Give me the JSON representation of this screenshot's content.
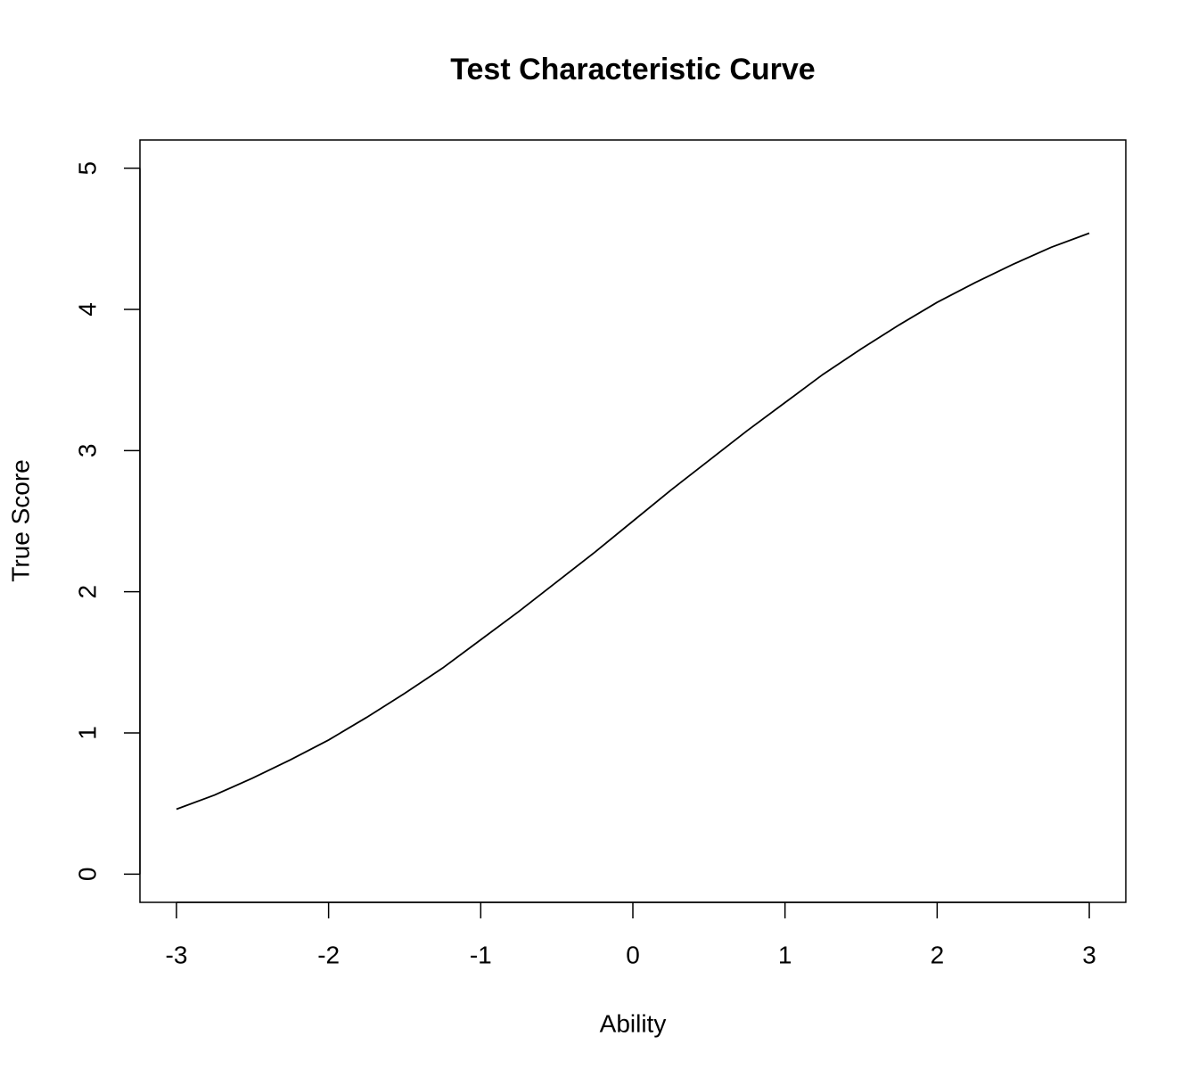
{
  "chart_data": {
    "type": "line",
    "title": "Test Characteristic Curve",
    "x_label": "Ability",
    "y_label": "True Score",
    "x": [
      -3,
      -2.75,
      -2.5,
      -2.25,
      -2,
      -1.75,
      -1.5,
      -1.25,
      -1,
      -0.75,
      -0.5,
      -0.25,
      0,
      0.25,
      0.5,
      0.75,
      1,
      1.25,
      1.5,
      1.75,
      2,
      2.25,
      2.5,
      2.75,
      3
    ],
    "values": [
      0.46,
      0.56,
      0.68,
      0.81,
      0.95,
      1.11,
      1.28,
      1.46,
      1.66,
      1.86,
      2.07,
      2.28,
      2.5,
      2.72,
      2.93,
      3.14,
      3.34,
      3.54,
      3.72,
      3.89,
      4.05,
      4.19,
      4.32,
      4.44,
      4.54
    ],
    "color": "#000000",
    "xlim": [
      -3.24,
      3.24
    ],
    "ylim": [
      -0.2,
      5.2
    ],
    "xticks": [
      -3,
      -2,
      -1,
      0,
      1,
      2,
      3
    ],
    "yticks": [
      0,
      1,
      2,
      3,
      4,
      5
    ]
  }
}
